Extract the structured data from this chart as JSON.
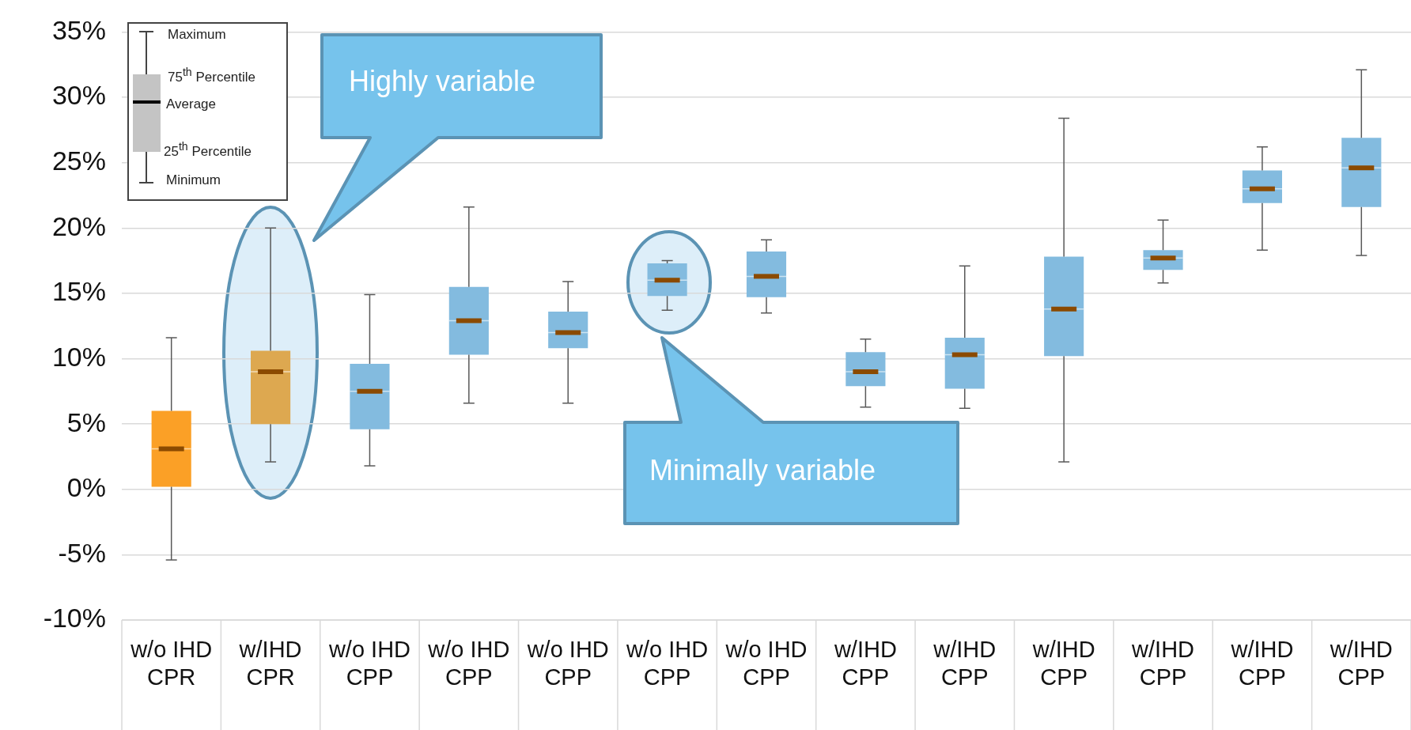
{
  "chart_data": {
    "type": "box",
    "categories": [
      "w/o IHD\nCPR",
      "w/IHD\nCPR",
      "w/o IHD\nCPP",
      "w/o IHD\nCPP",
      "w/o IHD\nCPP",
      "w/o IHD\nCPP",
      "w/o IHD\nCPP",
      "w/IHD\nCPP",
      "w/IHD\nCPP",
      "w/IHD\nCPP",
      "w/IHD\nCPP",
      "w/IHD\nCPP",
      "w/IHD\nCPP"
    ],
    "colors": [
      "#fba026",
      "#dda850",
      "#83bbdf",
      "#83bbdf",
      "#83bbdf",
      "#83bbdf",
      "#83bbdf",
      "#83bbdf",
      "#83bbdf",
      "#83bbdf",
      "#83bbdf",
      "#83bbdf",
      "#83bbdf"
    ],
    "boxes": [
      {
        "low": -5.4,
        "q1": 0.2,
        "median": 3.1,
        "mean": 3.1,
        "q3": 6.0,
        "high": 11.6
      },
      {
        "low": 2.1,
        "q1": 5.0,
        "median": 9.0,
        "mean": 9.0,
        "q3": 10.6,
        "high": 20.0
      },
      {
        "low": 1.8,
        "q1": 4.6,
        "median": 7.5,
        "mean": 7.5,
        "q3": 9.6,
        "high": 14.9
      },
      {
        "low": 6.6,
        "q1": 10.3,
        "median": 12.9,
        "mean": 12.9,
        "q3": 15.5,
        "high": 21.6
      },
      {
        "low": 6.6,
        "q1": 10.8,
        "median": 12.0,
        "mean": 12.0,
        "q3": 13.6,
        "high": 15.9
      },
      {
        "low": 13.7,
        "q1": 14.8,
        "median": 16.0,
        "mean": 16.0,
        "q3": 17.3,
        "high": 17.5
      },
      {
        "low": 13.5,
        "q1": 14.7,
        "median": 16.3,
        "mean": 16.3,
        "q3": 18.2,
        "high": 19.1
      },
      {
        "low": 6.3,
        "q1": 7.9,
        "median": 9.0,
        "mean": 9.0,
        "q3": 10.5,
        "high": 11.5
      },
      {
        "low": 6.2,
        "q1": 7.7,
        "median": 10.3,
        "mean": 10.3,
        "q3": 11.6,
        "high": 17.1
      },
      {
        "low": 2.1,
        "q1": 10.2,
        "median": 13.8,
        "mean": 13.8,
        "q3": 17.8,
        "high": 28.4
      },
      {
        "low": 15.8,
        "q1": 16.8,
        "median": 17.7,
        "mean": 17.7,
        "q3": 18.3,
        "high": 20.6
      },
      {
        "low": 18.3,
        "q1": 21.9,
        "median": 23.0,
        "mean": 23.0,
        "q3": 24.4,
        "high": 26.2
      },
      {
        "low": 17.9,
        "q1": 21.6,
        "median": 24.6,
        "mean": 24.6,
        "q3": 26.9,
        "high": 32.1
      }
    ],
    "ylim": [
      -10,
      35
    ],
    "yticks": [
      {
        "value": -10,
        "label": "-10%"
      },
      {
        "value": -5,
        "label": "-5%"
      },
      {
        "value": 0,
        "label": "0%"
      },
      {
        "value": 5,
        "label": "5%"
      },
      {
        "value": 10,
        "label": "10%"
      },
      {
        "value": 15,
        "label": "15%"
      },
      {
        "value": 20,
        "label": "20%"
      },
      {
        "value": 25,
        "label": "25%"
      },
      {
        "value": 30,
        "label": "30%"
      },
      {
        "value": 35,
        "label": "35%"
      }
    ],
    "grid": "y",
    "annotations": [
      "Maximum",
      "75$^{th}$ Percentile",
      "Average",
      "25$^{th}$ Percentile",
      "Minimum",
      "Highly variable",
      "Minimally variable"
    ]
  }
}
